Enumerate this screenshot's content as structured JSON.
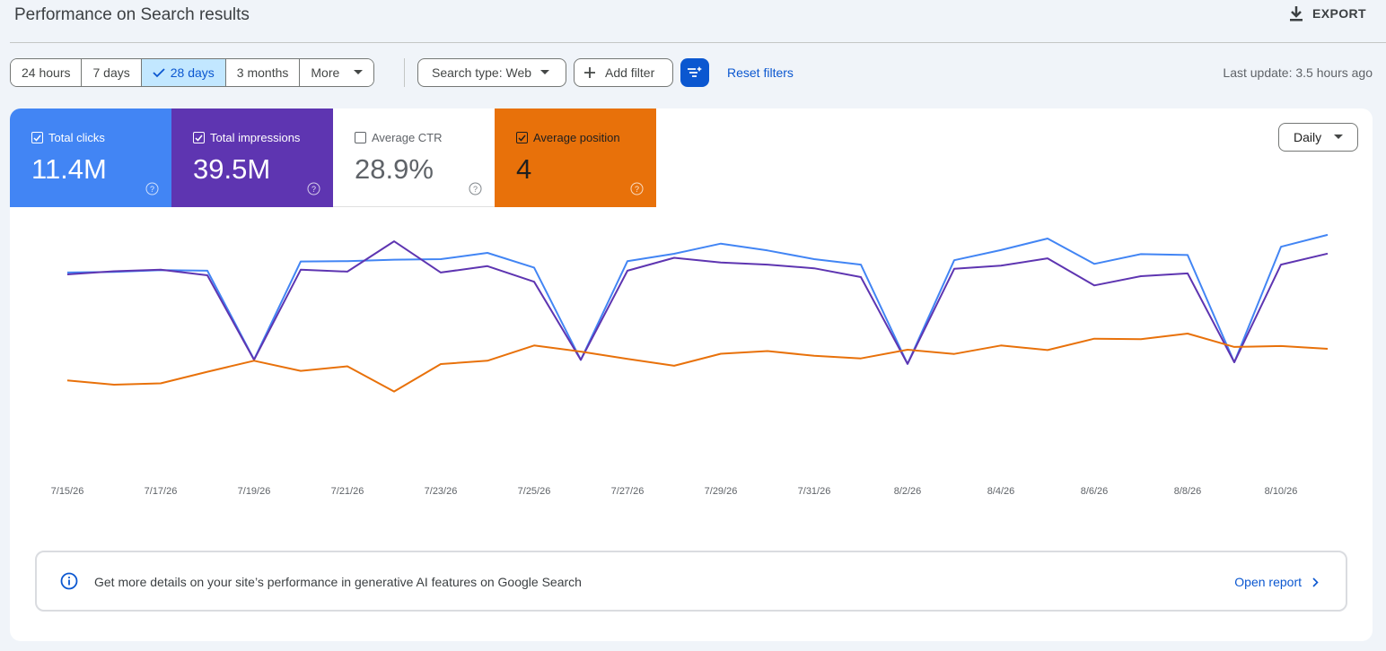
{
  "header": {
    "title": "Performance on Search results",
    "export_label": "EXPORT"
  },
  "toolbar": {
    "ranges": [
      {
        "label": "24 hours",
        "selected": false
      },
      {
        "label": "7 days",
        "selected": false
      },
      {
        "label": "28 days",
        "selected": true
      },
      {
        "label": "3 months",
        "selected": false
      },
      {
        "label": "More",
        "selected": false
      }
    ],
    "search_type": "Search type: Web",
    "add_filter": "Add filter",
    "reset_filters": "Reset filters",
    "last_update": "Last update: 3.5 hours ago"
  },
  "metrics": [
    {
      "label": "Total clicks",
      "value": "11.4M",
      "checked": true,
      "color": "#4285f4"
    },
    {
      "label": "Total impressions",
      "value": "39.5M",
      "checked": true,
      "color": "#5e35b1"
    },
    {
      "label": "Average CTR",
      "value": "28.9%",
      "checked": false,
      "color": "#ffffff"
    },
    {
      "label": "Average position",
      "value": "4",
      "checked": true,
      "color": "#e8710a"
    }
  ],
  "granularity": "Daily",
  "chart_data": {
    "type": "line",
    "x_tick_labels": [
      "7/15/26",
      "7/17/26",
      "7/19/26",
      "7/21/26",
      "7/23/26",
      "7/25/26",
      "7/27/26",
      "7/29/26",
      "7/31/26",
      "8/2/26",
      "8/4/26",
      "8/6/26",
      "8/8/26",
      "8/10/26"
    ],
    "x": [
      "7/15/26",
      "7/16/26",
      "7/17/26",
      "7/18/26",
      "7/19/26",
      "7/20/26",
      "7/21/26",
      "7/22/26",
      "7/23/26",
      "7/24/26",
      "7/25/26",
      "7/26/26",
      "7/27/26",
      "7/28/26",
      "7/29/26",
      "7/30/26",
      "7/31/26",
      "8/1/26",
      "8/2/26",
      "8/3/26",
      "8/4/26",
      "8/5/26",
      "8/6/26",
      "8/7/26",
      "8/8/26",
      "8/9/26",
      "8/10/26",
      "8/11/26"
    ],
    "y_axis_shown": false,
    "grid": false,
    "series": [
      {
        "name": "Total clicks",
        "color": "#4285f4",
        "values": [
          0.815,
          0.818,
          0.828,
          0.825,
          0.342,
          0.875,
          0.877,
          0.885,
          0.888,
          0.922,
          0.842,
          0.34,
          0.877,
          0.917,
          0.972,
          0.935,
          0.888,
          0.858,
          0.318,
          0.882,
          0.937,
          1.0,
          0.862,
          0.915,
          0.91,
          0.327,
          0.955,
          1.02
        ]
      },
      {
        "name": "Total impressions",
        "color": "#5e35b1",
        "values": [
          0.805,
          0.822,
          0.83,
          0.8,
          0.34,
          0.83,
          0.82,
          0.985,
          0.815,
          0.85,
          0.765,
          0.34,
          0.825,
          0.895,
          0.87,
          0.858,
          0.838,
          0.79,
          0.318,
          0.835,
          0.852,
          0.892,
          0.745,
          0.795,
          0.81,
          0.327,
          0.858,
          0.918
        ]
      },
      {
        "name": "Average position",
        "color": "#e8710a",
        "values": [
          0.228,
          0.205,
          0.212,
          0.275,
          0.335,
          0.28,
          0.305,
          0.168,
          0.317,
          0.335,
          0.418,
          0.385,
          0.345,
          0.308,
          0.373,
          0.388,
          0.362,
          0.348,
          0.395,
          0.372,
          0.418,
          0.393,
          0.455,
          0.452,
          0.483,
          0.41,
          0.415,
          0.4
        ]
      }
    ]
  },
  "info_banner": {
    "text": "Get more details on your site’s performance in generative AI features on Google Search",
    "link": "Open report"
  }
}
